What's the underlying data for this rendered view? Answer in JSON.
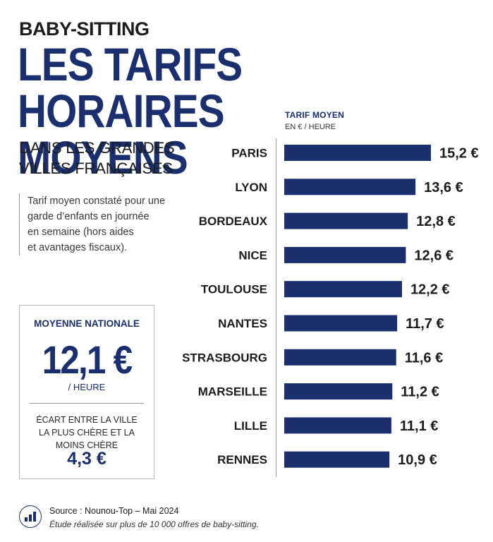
{
  "header": {
    "kicker": "BABY-SITTING",
    "headline_line1": "LES TARIFS HORAIRES",
    "headline_line2": "MOYENS",
    "subhead_line1": "DANS LES GRANDES",
    "subhead_line2": "VILLES FRANÇAISES"
  },
  "note": {
    "line1": "Tarif moyen constaté pour une",
    "line2": "garde d’enfants en journée",
    "line3": "en semaine (hors aides",
    "line4": "et avantages fiscaux)."
  },
  "national_card": {
    "label": "MOYENNE NATIONALE",
    "value": "12,1 €",
    "unit": "/ HEURE",
    "gap_line1": "ÉCART ENTRE LA VILLE",
    "gap_line2": "LA PLUS CHÈRE ET LA",
    "gap_line3": "MOINS CHÈRE",
    "gap_value": "4,3 €"
  },
  "chart_header": {
    "title": "TARIF MOYEN",
    "unit": "EN € / HEURE"
  },
  "chart_data": {
    "type": "bar",
    "orientation": "horizontal",
    "categories": [
      "PARIS",
      "LYON",
      "BORDEAUX",
      "NICE",
      "TOULOUSE",
      "NANTES",
      "STRASBOURG",
      "MARSEILLE",
      "LILLE",
      "RENNES"
    ],
    "values": [
      15.2,
      13.6,
      12.8,
      12.6,
      12.2,
      11.7,
      11.6,
      11.2,
      11.1,
      10.9
    ],
    "value_labels": [
      "15,2 €",
      "13,6 €",
      "12,8 €",
      "12,6 €",
      "12,2 €",
      "11,7 €",
      "11,6 €",
      "11,2 €",
      "11,1 €",
      "10,9 €"
    ],
    "xlim": [
      0,
      15.2
    ],
    "grid": false,
    "legend": "none",
    "bar_color": "#1b2f6e"
  },
  "footer": {
    "icon": "bar-chart-icon",
    "source": "Source : Nounou-Top – Mai 2024",
    "note": "Étude réalisée sur plus de 10 000 offres de baby-sitting."
  }
}
